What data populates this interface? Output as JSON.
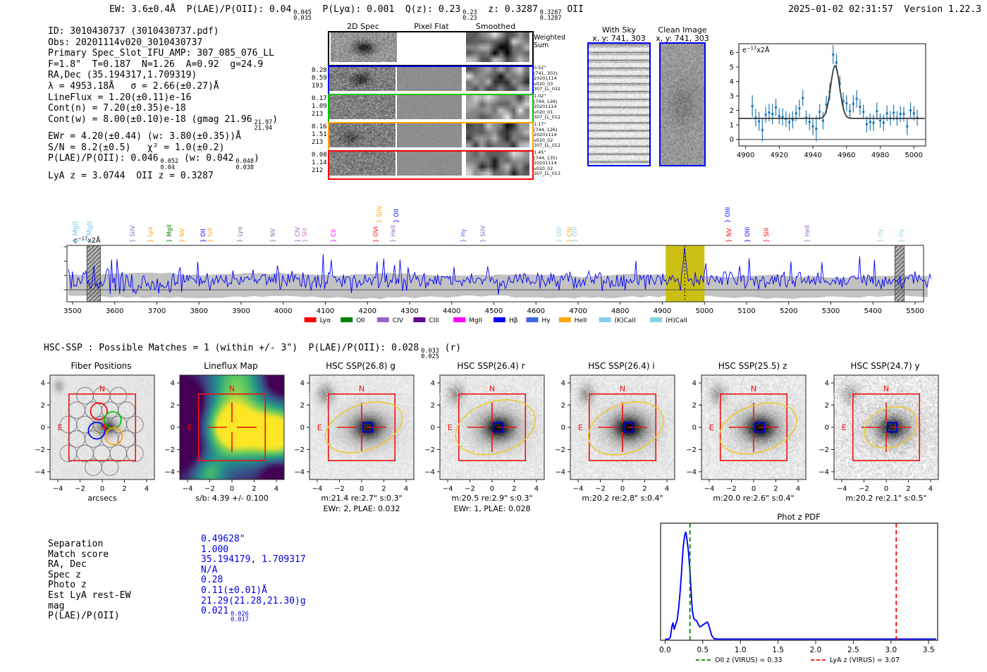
{
  "header": {
    "left_segments": [
      {
        "t": "EW: 3.6±0.4Å  P(LAE)/P(OII): 0.04"
      },
      {
        "sup": "0.045",
        "sub": "0.035"
      },
      {
        "t": "  P(Lyα): 0.001  Q(z): 0.23"
      },
      {
        "sup": "0.23",
        "sub": "0.23"
      },
      {
        "t": "  z: 0.3287"
      },
      {
        "sup": "0.3287",
        "sub": "0.3287"
      },
      {
        "t": " OII"
      }
    ],
    "right": "2025-01-02 02:31:57  Version 1.22.3"
  },
  "info_block": {
    "lines": [
      [
        {
          "t": "ID: 3010430737 (3010430737.pdf)"
        }
      ],
      [
        {
          "t": "Obs: 20201114v020_3010430737"
        }
      ],
      [
        {
          "t": "Primary Spec_Slot_IFU_AMP: 307_085_076_LL"
        }
      ],
      [
        {
          "t": "F=1.8\"  T=0.187  N=1.26  A=0.92  g=24.9"
        }
      ],
      [
        {
          "t": "RA,Dec (35.194317,1.709319)"
        }
      ],
      [
        {
          "t": "λ = 4953.18Å   σ = 2.66(±0.27)Å"
        }
      ],
      [
        {
          "t": "LineFlux = 1.20(±0.11)e-16"
        }
      ],
      [
        {
          "t": "Cont(n) = 7.20(±0.35)e-18"
        }
      ],
      [
        {
          "t": "Cont(w) = 8.00(±0.10)e-18 (gmag 21.96"
        },
        {
          "sup": "21.97",
          "sub": "21.94"
        },
        {
          "t": ")"
        }
      ],
      [
        {
          "t": "EWr = 4.20(±0.44) (w: 3.80(±0.35))Å"
        }
      ],
      [
        {
          "t": "S/N = 8.2(±0.5)   χ² = 1.0(±0.2)"
        }
      ],
      [
        {
          "t": "P(LAE)/P(OII): 0.046"
        },
        {
          "sup": "0.052",
          "sub": "0.04"
        },
        {
          "t": " (w: 0.042"
        },
        {
          "sup": "0.048",
          "sub": "0.038"
        },
        {
          "t": ")"
        }
      ],
      [
        {
          "t": "LyA z = 3.0744  OII z = 0.3287"
        }
      ]
    ]
  },
  "spec2d": {
    "headers": [
      "2D Spec",
      "Pixel Flat",
      "Smoothed"
    ],
    "weighted_sum_label": "Weighted\nSum",
    "rows": [
      {
        "border": "#0000ff",
        "left": [
          "0.28",
          "0.59",
          "193"
        ],
        "right": [
          "0.52\"",
          "(741, 303)",
          "20201114",
          "v020_03",
          "307_LL_032"
        ]
      },
      {
        "border": "#00c000",
        "left": [
          "0.17",
          "1.09",
          "213"
        ],
        "right": [
          "1.02\"",
          "(744, 126)",
          "20201114",
          "v020_01",
          "307_LL_012"
        ]
      },
      {
        "border": "#ffa500",
        "left": [
          "0.16",
          "1.51",
          "213"
        ],
        "right": [
          "1.17\"",
          "(744, 126)",
          "20201114",
          "v020_02",
          "307_LL_012"
        ]
      },
      {
        "border": "#ff0000",
        "left": [
          "0.08",
          "1.14",
          "212"
        ],
        "right": [
          "1.45\"",
          "(744, 135)",
          "20201114",
          "v020_02",
          "307_LL_013"
        ]
      }
    ]
  },
  "sky_panels": {
    "with_sky": {
      "title": "With Sky",
      "subtitle": "x, y: 741, 303",
      "border": "#0000ff"
    },
    "clean": {
      "title": "Clean Image",
      "subtitle": "x, y: 741, 303",
      "border": "#0000ff"
    }
  },
  "hsc_line_segments": [
    {
      "t": "HSC-SSP : Possible Matches = 1 (within +/- 3\")  P(LAE)/P(OII): 0.028"
    },
    {
      "sup": "0.033",
      "sub": "0.025"
    },
    {
      "t": " (r)"
    }
  ],
  "cutouts": [
    {
      "title": "Fiber Positions",
      "xlabel": "arcsecs",
      "caption": "",
      "kind": "fiber"
    },
    {
      "title": "Lineflux Map",
      "xlabel": "s/b: 4.39 +/- 0.100",
      "caption": "",
      "kind": "lineflux"
    },
    {
      "title": "HSC SSP(26.8) g",
      "xlabel": "m:21.4  re:2.7\"  s:0.3\"",
      "caption": "EWr: 2, PLAE: 0.032",
      "kind": "hsc"
    },
    {
      "title": "HSC SSP(26.4) r",
      "xlabel": "m:20.5  re:2.9\"  s:0.3\"",
      "caption": "EWr: 1, PLAE: 0.028",
      "kind": "hsc"
    },
    {
      "title": "HSC SSP(26.4) i",
      "xlabel": "m:20.2  re:2.8\"  s:0.4\"",
      "caption": "",
      "kind": "hsc"
    },
    {
      "title": "HSC SSP(25.5) z",
      "xlabel": "m:20.0  re:2.6\"  s:0.4\"",
      "caption": "",
      "kind": "hsc"
    },
    {
      "title": "HSC SSP(24.7) y",
      "xlabel": "m:20.2  re:2.1\"  s:0.5\"",
      "caption": "",
      "kind": "hsc"
    }
  ],
  "cutout_axes": {
    "ticks": [
      -4,
      -2,
      0,
      2,
      4
    ],
    "range": 4.7,
    "north_label": "N",
    "east_label": "E",
    "compass_color": "#ee1111"
  },
  "match_table": {
    "rows": [
      {
        "label": "Separation",
        "value": "0.49628\""
      },
      {
        "label": "Match score",
        "value": "1.000"
      },
      {
        "label": "RA, Dec",
        "value": "35.194179, 1.709317"
      },
      {
        "label": "Spec z",
        "value": "N/A"
      },
      {
        "label": "Photo z",
        "value": "0.28"
      },
      {
        "label": "Est LyA rest-EW",
        "value": "0.11(±0.01)Å"
      },
      {
        "label": "mag",
        "value": "21.29(21.28,21.30)g"
      },
      {
        "label": "P(LAE)/P(OII)",
        "value": "0.021",
        "sup": "0.026",
        "sub": "0.017"
      }
    ],
    "value_color": "#0000dd"
  },
  "chart_data": [
    {
      "id": "line_fit",
      "type": "scatter",
      "annotation": {
        "prefix": "e",
        "sup": "−17",
        "suffix": "x2Å"
      },
      "xticks": [
        4900,
        4920,
        4940,
        4960,
        4980,
        5000
      ],
      "yticks": [
        0,
        1,
        2,
        3,
        4,
        5,
        6
      ],
      "xlim": [
        4896,
        5007
      ],
      "ylim": [
        -0.45,
        6.6
      ],
      "marker_color": "#1f77b4",
      "fit_color": "#3c3c3c",
      "fit": {
        "baseline": 1.45,
        "amplitude": 3.65,
        "center": 4953.2,
        "sigma": 2.66
      },
      "points": [
        [
          4904,
          2.3,
          0.75
        ],
        [
          4906,
          1.5,
          0.6
        ],
        [
          4908,
          1.25,
          0.65
        ],
        [
          4910,
          0.65,
          0.8
        ],
        [
          4912,
          1.7,
          0.55
        ],
        [
          4914,
          1.85,
          0.6
        ],
        [
          4916,
          1.75,
          0.7
        ],
        [
          4918,
          2.2,
          0.6
        ],
        [
          4920,
          1.6,
          0.55
        ],
        [
          4922,
          1.55,
          0.6
        ],
        [
          4924,
          1.4,
          0.55
        ],
        [
          4926,
          1.2,
          0.6
        ],
        [
          4928,
          1.35,
          0.6
        ],
        [
          4930,
          1.8,
          0.55
        ],
        [
          4932,
          2.15,
          0.6
        ],
        [
          4934,
          2.85,
          0.55
        ],
        [
          4936,
          1.5,
          0.5
        ],
        [
          4938,
          1.2,
          0.55
        ],
        [
          4940,
          0.9,
          0.6
        ],
        [
          4942,
          0.75,
          0.9
        ],
        [
          4944,
          1.9,
          0.55
        ],
        [
          4946,
          1.3,
          0.6
        ],
        [
          4948,
          2.4,
          0.6
        ],
        [
          4950,
          3.3,
          0.6
        ],
        [
          4952,
          5.85,
          0.65
        ],
        [
          4954,
          5.3,
          0.6
        ],
        [
          4956,
          3.85,
          0.55
        ],
        [
          4958,
          2.65,
          0.6
        ],
        [
          4960,
          2.5,
          0.55
        ],
        [
          4962,
          1.95,
          0.5
        ],
        [
          4964,
          2.45,
          0.6
        ],
        [
          4966,
          2.8,
          0.6
        ],
        [
          4968,
          2.25,
          0.55
        ],
        [
          4970,
          1.9,
          0.5
        ],
        [
          4972,
          1.05,
          0.55
        ],
        [
          4974,
          1.2,
          0.6
        ],
        [
          4976,
          1.15,
          0.55
        ],
        [
          4978,
          1.95,
          0.6
        ],
        [
          4980,
          1.3,
          0.5
        ],
        [
          4982,
          1.15,
          0.55
        ],
        [
          4984,
          1.8,
          0.55
        ],
        [
          4986,
          1.45,
          0.5
        ],
        [
          4988,
          1.85,
          0.55
        ],
        [
          4990,
          1.45,
          0.5
        ],
        [
          4992,
          1.75,
          0.55
        ],
        [
          4994,
          1.75,
          0.5
        ],
        [
          4996,
          0.9,
          0.6
        ],
        [
          4998,
          2.0,
          0.55
        ],
        [
          5000,
          1.8,
          0.5
        ],
        [
          5002,
          1.5,
          0.55
        ]
      ]
    },
    {
      "id": "full_spectrum",
      "type": "line",
      "annotation": {
        "prefix": "e",
        "sup": "−17",
        "suffix": "x2Å"
      },
      "xticks": [
        3500,
        3600,
        3700,
        3800,
        3900,
        4000,
        4100,
        4200,
        4300,
        4400,
        4500,
        4600,
        4700,
        4800,
        4900,
        5000,
        5100,
        5200,
        5300,
        5400,
        5500
      ],
      "yticks": [
        0,
        2,
        4,
        6
      ],
      "xlim": [
        3487,
        5545
      ],
      "ylim": [
        -1.62,
        6.3
      ],
      "line_color": "#0000ff",
      "err_band_color": "#bbbbbb",
      "highlight_band": {
        "x0": 4908,
        "x1": 5000,
        "color": "#c9bd09"
      },
      "hatch_bands": [
        [
          3534,
          3566
        ],
        [
          5452,
          5474
        ]
      ],
      "marker_line": {
        "x": 4953.2,
        "color": "#000000"
      },
      "noise_seed": 20201114,
      "baseline": 1.35,
      "peak": {
        "center": 4953.2,
        "sigma": 2.9,
        "amplitude": 4.75
      },
      "legend": [
        {
          "label": "Lyα",
          "color": "#ff0000"
        },
        {
          "label": "OII",
          "color": "#008000"
        },
        {
          "label": "CIV",
          "color": "#9467bd"
        },
        {
          "label": "CIII",
          "color": "#5e0d8b"
        },
        {
          "label": "MgII",
          "color": "#ff00ff"
        },
        {
          "label": "Hβ",
          "color": "#0000ff"
        },
        {
          "label": "Hγ",
          "color": "#4169e1"
        },
        {
          "label": "HeII",
          "color": "#ffa500"
        },
        {
          "label": "(K)CaII",
          "color": "#87ceeb"
        },
        {
          "label": "(H)CaII",
          "color": "#87ceeb"
        }
      ],
      "line_labels": [
        {
          "label": "MgII",
          "wave": 3507,
          "color": "#6ec6ea",
          "level": 1,
          "tall": true
        },
        {
          "label": "MgII",
          "wave": 3540,
          "color": "#6ec6ea",
          "level": 1,
          "tall": true
        },
        {
          "label": "SiIV",
          "wave": 3642,
          "color": "#9467bd",
          "level": 1
        },
        {
          "label": "Lyα",
          "wave": 3684,
          "color": "#ffa500",
          "level": 1
        },
        {
          "label": "MgII",
          "wave": 3729,
          "color": "#008000",
          "level": 1
        },
        {
          "label": "NV",
          "wave": 3759,
          "color": "#ffa500",
          "level": 1
        },
        {
          "label": "OII",
          "wave": 3810,
          "color": "#0000ff",
          "level": 1
        },
        {
          "label": "SiII",
          "wave": 3826,
          "color": "#ffa500",
          "level": 1
        },
        {
          "label": "Lyα",
          "wave": 3897,
          "color": "#9467bd",
          "level": 1
        },
        {
          "label": "NV",
          "wave": 3975,
          "color": "#9467bd",
          "level": 1
        },
        {
          "label": "CIV",
          "wave": 4034,
          "color": "#9467bd",
          "level": 1
        },
        {
          "label": "SiII",
          "wave": 4051,
          "color": "#cc79c8",
          "level": 1
        },
        {
          "label": "CII",
          "wave": 4119,
          "color": "#ff00ff",
          "level": 1
        },
        {
          "label": "OVI",
          "wave": 4220,
          "color": "#ff0000",
          "level": 1
        },
        {
          "label": "SiIV",
          "wave": 4228,
          "color": "#ffa500",
          "level": 2
        },
        {
          "label": "HeII",
          "wave": 4261,
          "color": "#9467bd",
          "level": 1
        },
        {
          "label": "OII",
          "wave": 4268,
          "color": "#0000ff",
          "level": 2
        },
        {
          "label": "Hγ",
          "wave": 4427,
          "color": "#4169e1",
          "level": 1
        },
        {
          "label": "SiIV",
          "wave": 4474,
          "color": "#9467bd",
          "level": 1
        },
        {
          "label": "OIII",
          "wave": 4655,
          "color": "#87ceeb",
          "level": 1
        },
        {
          "label": "CIV",
          "wave": 4680,
          "color": "#ffa500",
          "level": 1
        },
        {
          "label": "OIII",
          "wave": 4692,
          "color": "#87ceeb",
          "level": 1
        },
        {
          "label": "OIII",
          "wave": 5055,
          "color": "#0000ff",
          "level": 2
        },
        {
          "label": "NV",
          "wave": 5058,
          "color": "#ff0000",
          "level": 1
        },
        {
          "label": "OIII",
          "wave": 5102,
          "color": "#0000ff",
          "level": 1
        },
        {
          "label": "SiII",
          "wave": 5147,
          "color": "#ff0000",
          "level": 1
        },
        {
          "label": "HeII",
          "wave": 5244,
          "color": "#9467bd",
          "level": 1
        },
        {
          "label": "Hγ",
          "wave": 5417,
          "color": "#87ceeb",
          "level": 1
        },
        {
          "label": "Hγ",
          "wave": 5467,
          "color": "#87ceeb",
          "level": 1
        }
      ]
    },
    {
      "id": "phot_z_pdf",
      "type": "line",
      "title": "Phot z PDF",
      "xticks": [
        "0.0",
        "0.5",
        "1.0",
        "1.5",
        "2.0",
        "2.5",
        "3.0",
        "3.5"
      ],
      "xlim": [
        -0.06,
        3.62
      ],
      "ylim": [
        0,
        3.85
      ],
      "line_color": "#0000ff",
      "points": [
        [
          0.0,
          0.04
        ],
        [
          0.05,
          0.04
        ],
        [
          0.07,
          0.1
        ],
        [
          0.09,
          0.45
        ],
        [
          0.105,
          0.58
        ],
        [
          0.12,
          0.35
        ],
        [
          0.14,
          0.52
        ],
        [
          0.16,
          0.66
        ],
        [
          0.18,
          1.05
        ],
        [
          0.2,
          1.62
        ],
        [
          0.22,
          2.3
        ],
        [
          0.24,
          3.05
        ],
        [
          0.26,
          3.45
        ],
        [
          0.275,
          3.57
        ],
        [
          0.29,
          3.32
        ],
        [
          0.31,
          2.92
        ],
        [
          0.33,
          2.3
        ],
        [
          0.34,
          1.85
        ],
        [
          0.36,
          1.0
        ],
        [
          0.38,
          0.72
        ],
        [
          0.4,
          0.66
        ],
        [
          0.42,
          0.64
        ],
        [
          0.44,
          0.52
        ],
        [
          0.46,
          0.44
        ],
        [
          0.48,
          0.46
        ],
        [
          0.5,
          0.5
        ],
        [
          0.53,
          0.55
        ],
        [
          0.56,
          0.6
        ],
        [
          0.58,
          0.5
        ],
        [
          0.6,
          0.32
        ],
        [
          0.62,
          0.15
        ],
        [
          0.65,
          0.05
        ],
        [
          0.7,
          0.04
        ],
        [
          1.0,
          0.04
        ],
        [
          2.0,
          0.04
        ],
        [
          3.6,
          0.04
        ]
      ],
      "vlines": [
        {
          "x": 0.33,
          "color": "#008000",
          "label": "OII z (VIRUS) = 0.33"
        },
        {
          "x": 3.07,
          "color": "#ff0000",
          "label": "LyA z (VIRUS) = 3.07"
        }
      ]
    }
  ]
}
